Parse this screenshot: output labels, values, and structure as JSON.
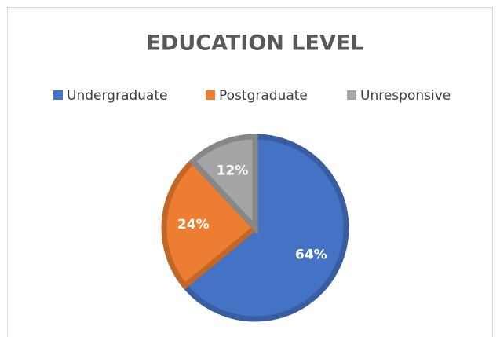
{
  "chart_data": {
    "type": "pie",
    "title": "EDUCATION LEVEL",
    "categories": [
      "Undergraduate",
      "Postgraduate",
      "Unresponsive"
    ],
    "values": [
      64,
      24,
      12
    ],
    "value_labels": [
      "64%",
      "24%",
      "12%"
    ],
    "colors": [
      "#4472c4",
      "#ed7d31",
      "#a5a5a5"
    ],
    "legend": "top"
  }
}
